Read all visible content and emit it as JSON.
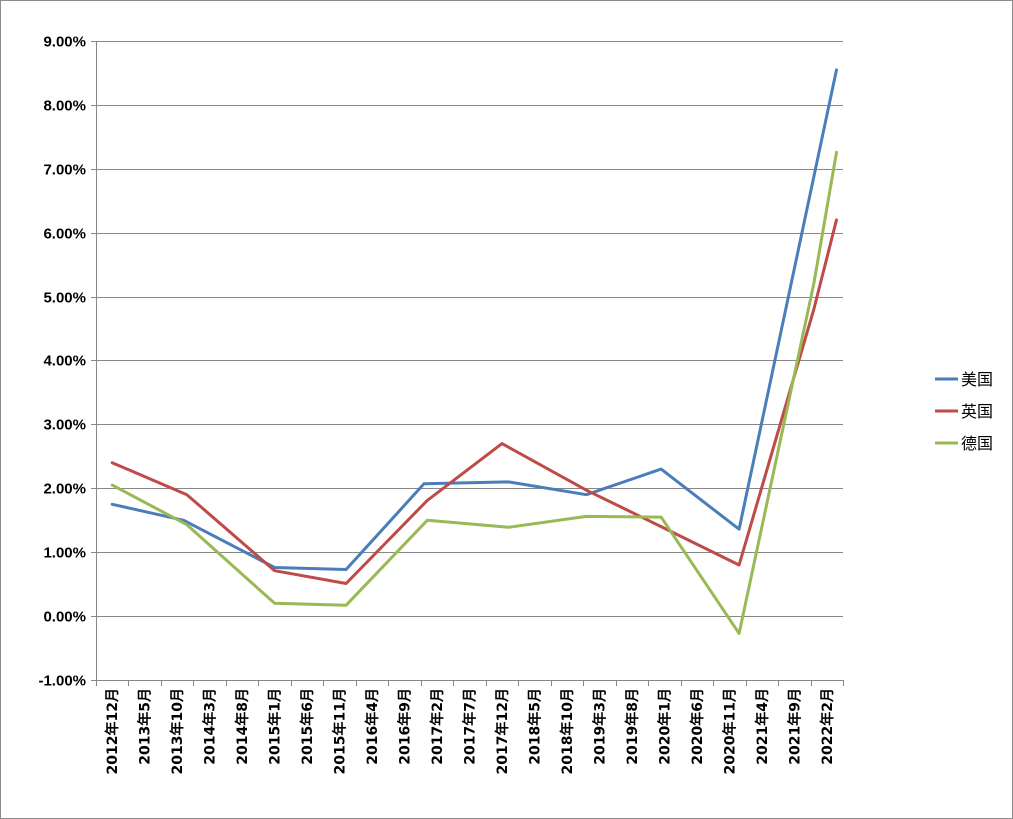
{
  "chart_data": {
    "type": "line",
    "title": "",
    "xlabel": "",
    "ylabel": "",
    "ylim": [
      -0.01,
      0.09
    ],
    "y_ticks": [
      "9.00%",
      "8.00%",
      "7.00%",
      "6.00%",
      "5.00%",
      "4.00%",
      "3.00%",
      "2.00%",
      "1.00%",
      "0.00%",
      "-1.00%"
    ],
    "y_tick_values": [
      0.09,
      0.08,
      0.07,
      0.06,
      0.05,
      0.04,
      0.03,
      0.02,
      0.01,
      0.0,
      -0.01
    ],
    "grid": true,
    "legend_position": "right",
    "categories": [
      "2012年12月",
      "2013年5月",
      "2013年10月",
      "2014年3月",
      "2014年8月",
      "2015年1月",
      "2015年6月",
      "2015年11月",
      "2016年4月",
      "2016年9月",
      "2017年2月",
      "2017年7月",
      "2017年12月",
      "2018年5月",
      "2018年10月",
      "2019年3月",
      "2019年8月",
      "2020年1月",
      "2020年6月",
      "2020年11月",
      "2021年4月",
      "2021年9月",
      "2022年2月"
    ],
    "series": [
      {
        "name": "美国",
        "color": "#4a7ebb",
        "points": [
          {
            "x": 0,
            "y": 0.0175
          },
          {
            "x": 2.2,
            "y": 0.015
          },
          {
            "x": 5,
            "y": 0.0076
          },
          {
            "x": 7.2,
            "y": 0.0073
          },
          {
            "x": 9.6,
            "y": 0.0207
          },
          {
            "x": 12.2,
            "y": 0.021
          },
          {
            "x": 14.6,
            "y": 0.019
          },
          {
            "x": 16.9,
            "y": 0.023
          },
          {
            "x": 19.3,
            "y": 0.0136
          },
          {
            "x": 22.3,
            "y": 0.0855
          }
        ]
      },
      {
        "name": "英国",
        "color": "#be4b48",
        "points": [
          {
            "x": 0,
            "y": 0.024
          },
          {
            "x": 2.3,
            "y": 0.019
          },
          {
            "x": 5,
            "y": 0.0071
          },
          {
            "x": 7.2,
            "y": 0.0051
          },
          {
            "x": 9.7,
            "y": 0.0181
          },
          {
            "x": 12,
            "y": 0.027
          },
          {
            "x": 14.6,
            "y": 0.0197
          },
          {
            "x": 16.9,
            "y": 0.014
          },
          {
            "x": 19.3,
            "y": 0.008
          },
          {
            "x": 21.6,
            "y": 0.048
          },
          {
            "x": 22.3,
            "y": 0.062
          }
        ]
      },
      {
        "name": "德国",
        "color": "#98b954",
        "points": [
          {
            "x": 0,
            "y": 0.0205
          },
          {
            "x": 2.3,
            "y": 0.0143
          },
          {
            "x": 5,
            "y": 0.002
          },
          {
            "x": 7.2,
            "y": 0.0017
          },
          {
            "x": 9.7,
            "y": 0.015
          },
          {
            "x": 12.2,
            "y": 0.0139
          },
          {
            "x": 14.6,
            "y": 0.0156
          },
          {
            "x": 16.9,
            "y": 0.0155
          },
          {
            "x": 19.3,
            "y": -0.0027
          },
          {
            "x": 21.6,
            "y": 0.052
          },
          {
            "x": 22.3,
            "y": 0.0726
          }
        ]
      }
    ]
  }
}
